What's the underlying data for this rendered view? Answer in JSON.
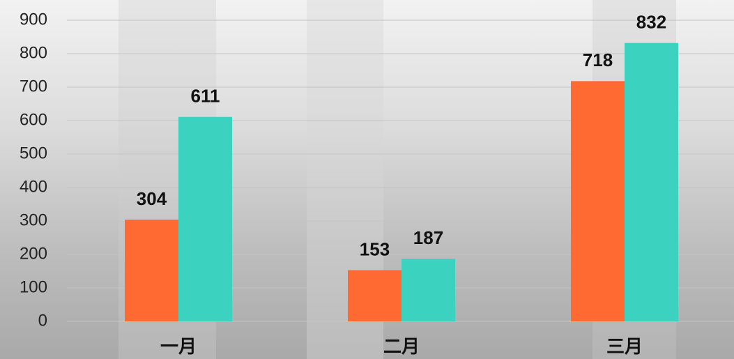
{
  "chart_data": {
    "type": "bar",
    "categories": [
      "一月",
      "二月",
      "三月"
    ],
    "series": [
      {
        "color": "#ff6a33",
        "values": [
          304,
          153,
          718
        ]
      },
      {
        "color": "#3bd3bf",
        "values": [
          611,
          187,
          832
        ]
      }
    ],
    "ylim": [
      0,
      900
    ],
    "yticks": [
      0,
      100,
      200,
      300,
      400,
      500,
      600,
      700,
      800,
      900
    ],
    "grid": true
  }
}
